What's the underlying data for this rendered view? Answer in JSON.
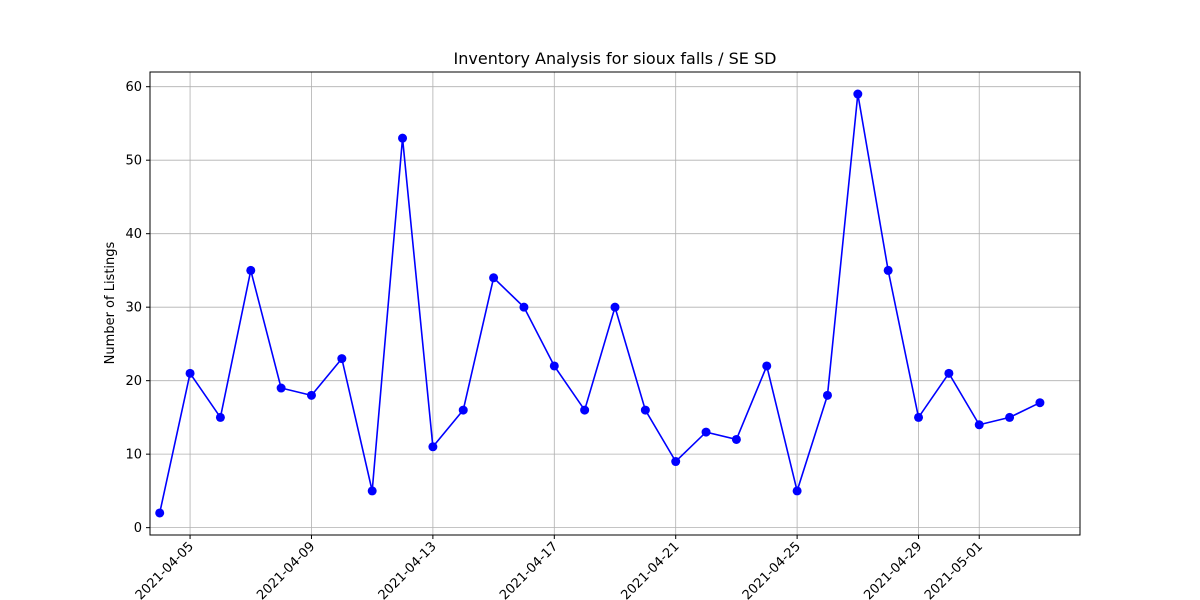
{
  "chart_data": {
    "type": "line",
    "title": "Inventory Analysis for sioux falls / SE SD",
    "xlabel": "",
    "ylabel": "Number of Listings",
    "x": [
      "2021-04-04",
      "2021-04-05",
      "2021-04-06",
      "2021-04-07",
      "2021-04-08",
      "2021-04-09",
      "2021-04-10",
      "2021-04-11",
      "2021-04-12",
      "2021-04-13",
      "2021-04-14",
      "2021-04-15",
      "2021-04-16",
      "2021-04-17",
      "2021-04-18",
      "2021-04-19",
      "2021-04-20",
      "2021-04-21",
      "2021-04-22",
      "2021-04-23",
      "2021-04-24",
      "2021-04-25",
      "2021-04-26",
      "2021-04-27",
      "2021-04-28",
      "2021-04-29",
      "2021-04-30",
      "2021-05-01",
      "2021-05-02",
      "2021-05-03"
    ],
    "values": [
      2,
      21,
      15,
      35,
      19,
      18,
      23,
      5,
      53,
      11,
      16,
      34,
      30,
      22,
      16,
      30,
      16,
      9,
      13,
      12,
      22,
      5,
      18,
      59,
      35,
      15,
      21,
      14,
      15,
      17
    ],
    "x_ticks": [
      "2021-04-05",
      "2021-04-09",
      "2021-04-13",
      "2021-04-17",
      "2021-04-21",
      "2021-04-25",
      "2021-04-29",
      "2021-05-01"
    ],
    "y_ticks": [
      0,
      10,
      20,
      30,
      40,
      50,
      60
    ],
    "xlim": [
      "2021-04-03",
      "2021-05-04"
    ],
    "ylim": [
      -1,
      62
    ],
    "grid": true,
    "line_color": "#0000ff",
    "marker_color": "#0000ff"
  }
}
